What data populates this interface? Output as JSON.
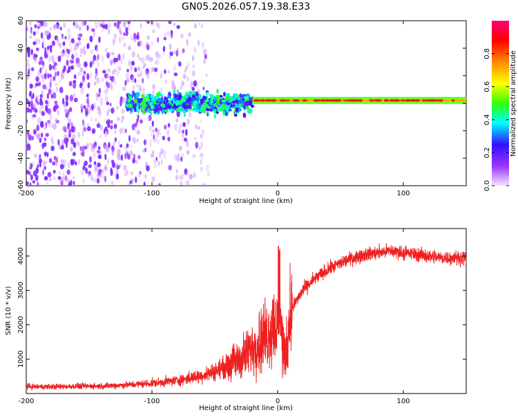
{
  "title": "GN05.2026.057.19.38.E33",
  "chart_data": [
    {
      "type": "heatmap",
      "xlabel": "Height of straight line (km)",
      "ylabel": "Frequency (Hz)",
      "xlim": [
        -200,
        150
      ],
      "ylim": [
        -60,
        60
      ],
      "xticks": [
        -200,
        -100,
        0,
        100
      ],
      "yticks": [
        -60,
        -40,
        -20,
        0,
        20,
        40,
        60
      ],
      "xtick_labels": [
        "-200",
        "-100",
        "0",
        "100"
      ],
      "ytick_labels": [
        "-60",
        "-40",
        "-20",
        "0",
        "20",
        "40",
        "60"
      ],
      "colorbar": {
        "label": "Normalized spectral amplitude",
        "range": [
          0,
          1
        ],
        "ticks": [
          0.0,
          0.2,
          0.4,
          0.6,
          0.8
        ],
        "tick_labels": [
          "0.0",
          "0.2",
          "0.4",
          "0.6",
          "0.8"
        ],
        "colors": [
          "#f2e6ff",
          "#9933ff",
          "#3311ff",
          "#00ffff",
          "#33ff00",
          "#ffff00",
          "#ff8800",
          "#ff0000",
          "#ff0077"
        ]
      },
      "features": [
        {
          "description": "broadband noise",
          "x_range": [
            -200,
            -55
          ],
          "freq_range": [
            -60,
            60
          ],
          "amplitude": 0.1
        },
        {
          "description": "signal band",
          "x_range": [
            -120,
            -20
          ],
          "freq_range": [
            -10,
            10
          ],
          "amplitude": 0.35
        },
        {
          "description": "narrow carrier",
          "x_range": [
            -20,
            150
          ],
          "freq": 2,
          "amplitude": 0.8
        }
      ]
    },
    {
      "type": "line",
      "xlabel": "Height of straight line (km)",
      "ylabel": "SNR (10 * v/v)",
      "xlim": [
        -200,
        150
      ],
      "ylim": [
        0,
        4800
      ],
      "xticks": [
        -200,
        -100,
        0,
        100
      ],
      "yticks": [
        1000,
        2000,
        3000,
        4000
      ],
      "xtick_labels": [
        "-200",
        "-100",
        "0",
        "100"
      ],
      "ytick_labels": [
        "1000",
        "2000",
        "3000",
        "4000"
      ],
      "color": "#ee2020",
      "series": [
        {
          "name": "SNR",
          "x": [
            -200,
            -180,
            -160,
            -140,
            -120,
            -100,
            -80,
            -60,
            -50,
            -40,
            -30,
            -20,
            -15,
            -10,
            -5,
            0,
            2,
            5,
            8,
            10,
            20,
            30,
            40,
            50,
            60,
            70,
            80,
            90,
            100,
            110,
            120,
            130,
            140,
            150
          ],
          "y": [
            200,
            200,
            210,
            220,
            250,
            300,
            380,
            520,
            650,
            800,
            1000,
            1300,
            1500,
            1700,
            1900,
            2100,
            2300,
            1000,
            1500,
            2400,
            3000,
            3350,
            3600,
            3800,
            3950,
            4050,
            4100,
            4150,
            4100,
            4050,
            4000,
            3950,
            3950,
            3950
          ]
        }
      ]
    }
  ]
}
